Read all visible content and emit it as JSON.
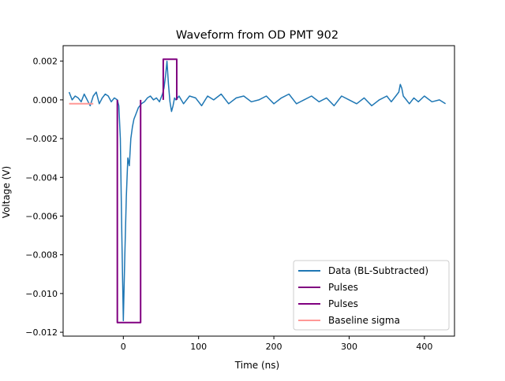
{
  "chart_data": {
    "type": "line",
    "title": "Waveform from OD PMT 902",
    "xlabel": "Time (ns)",
    "ylabel": "Voltage (V)",
    "xlim": [
      -80,
      440
    ],
    "ylim": [
      -0.0122,
      0.0028
    ],
    "x_ticks": [
      0,
      100,
      200,
      300,
      400
    ],
    "x_tick_labels": [
      "0",
      "100",
      "200",
      "300",
      "400"
    ],
    "y_ticks": [
      0.002,
      0.0,
      -0.002,
      -0.004,
      -0.006,
      -0.008,
      -0.01,
      -0.012
    ],
    "y_tick_labels": [
      "0.002",
      "0.000",
      "−0.002",
      "−0.004",
      "−0.006",
      "−0.008",
      "−0.010",
      "−0.012"
    ],
    "grid": false,
    "legend_position": "lower-right",
    "colors": {
      "data": "#1f77b4",
      "pulse": "#800080",
      "baseline": "#ff9896"
    },
    "series": [
      {
        "name": "Data (BL-Subtracted)",
        "color": "#1f77b4",
        "x": [
          -72,
          -68,
          -64,
          -60,
          -56,
          -52,
          -48,
          -44,
          -40,
          -36,
          -32,
          -28,
          -24,
          -20,
          -16,
          -12,
          -8,
          -6,
          -4,
          -2,
          0,
          2,
          4,
          6,
          8,
          10,
          12,
          14,
          16,
          18,
          20,
          22,
          24,
          28,
          32,
          36,
          40,
          44,
          48,
          52,
          54,
          56,
          58,
          60,
          62,
          64,
          66,
          68,
          70,
          74,
          80,
          88,
          96,
          104,
          112,
          120,
          130,
          140,
          150,
          160,
          170,
          180,
          190,
          200,
          210,
          220,
          230,
          240,
          250,
          260,
          270,
          280,
          290,
          300,
          310,
          320,
          330,
          340,
          350,
          356,
          362,
          366,
          368,
          370,
          372,
          376,
          380,
          386,
          392,
          400,
          410,
          420,
          428
        ],
        "y": [
          0.0004,
          0.0,
          0.0002,
          0.0001,
          -0.0001,
          0.0003,
          0.0,
          -0.0003,
          0.0002,
          0.0004,
          -0.0002,
          0.0001,
          0.0003,
          0.0002,
          -0.0001,
          0.0001,
          0.0,
          -0.0003,
          -0.002,
          -0.007,
          -0.0114,
          -0.008,
          -0.005,
          -0.003,
          -0.0034,
          -0.002,
          -0.0014,
          -0.001,
          -0.0008,
          -0.0006,
          -0.0004,
          -0.0003,
          -0.0002,
          -0.0001,
          0.0001,
          0.0002,
          0.0,
          0.0001,
          -0.0001,
          0.0003,
          0.0006,
          0.0012,
          0.002,
          0.0008,
          -0.0001,
          -0.0006,
          -0.0003,
          0.0001,
          0.0,
          0.0002,
          -0.0002,
          0.0002,
          0.0001,
          -0.0003,
          0.0002,
          0.0,
          0.0003,
          -0.0002,
          0.0001,
          0.0002,
          -0.0001,
          0.0,
          0.0002,
          -0.0002,
          0.0001,
          0.0003,
          -0.0002,
          0.0,
          0.0002,
          -0.0001,
          0.0001,
          -0.0003,
          0.0002,
          0.0,
          -0.0002,
          0.0001,
          -0.0003,
          0.0,
          0.0002,
          -0.0001,
          0.0002,
          0.0004,
          0.0008,
          0.0006,
          0.0002,
          0.0,
          -0.0002,
          0.0001,
          -0.0001,
          0.0002,
          -0.0001,
          0.0,
          -0.0002
        ]
      },
      {
        "name": "Pulses",
        "color": "#800080",
        "x": [
          -8,
          -8,
          23,
          23
        ],
        "y": [
          0.0,
          -0.0115,
          -0.0115,
          0.0
        ]
      },
      {
        "name": "Pulses",
        "color": "#800080",
        "x": [
          53,
          53,
          71,
          71
        ],
        "y": [
          0.0,
          0.0021,
          0.0021,
          0.0
        ]
      },
      {
        "name": "Baseline sigma",
        "color": "#ff9896",
        "x": [
          -72,
          -40
        ],
        "y": [
          -0.0002,
          -0.0002
        ]
      }
    ]
  }
}
